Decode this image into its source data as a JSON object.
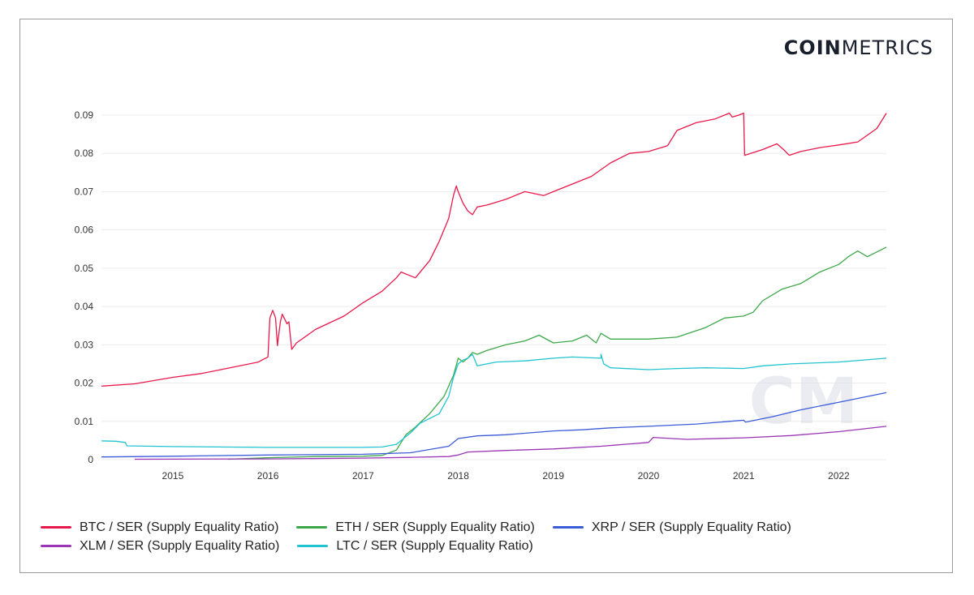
{
  "logo": {
    "bold": "COIN",
    "light": "METRICS"
  },
  "chart_data": {
    "type": "line",
    "title": "",
    "xlabel": "",
    "ylabel": "",
    "xlim": [
      2014.25,
      2022.5
    ],
    "ylim": [
      0,
      0.09
    ],
    "x_ticks": [
      2015,
      2016,
      2017,
      2018,
      2019,
      2020,
      2021,
      2022
    ],
    "x_tick_labels": [
      "2015",
      "2016",
      "2017",
      "2018",
      "2019",
      "2020",
      "2021",
      "2022"
    ],
    "y_ticks": [
      0,
      0.01,
      0.02,
      0.03,
      0.04,
      0.05,
      0.06,
      0.07,
      0.08,
      0.09
    ],
    "y_tick_labels": [
      "0",
      "0.01",
      "0.02",
      "0.03",
      "0.04",
      "0.05",
      "0.06",
      "0.07",
      "0.08",
      "0.09"
    ],
    "grid": true,
    "legend_position": "bottom",
    "watermark": "CM",
    "series": [
      {
        "name": "BTC / SER (Supply Equality Ratio)",
        "color": "#e8194a",
        "x": [
          2014.25,
          2014.6,
          2015.0,
          2015.3,
          2015.6,
          2015.9,
          2015.95,
          2016.0,
          2016.02,
          2016.05,
          2016.08,
          2016.1,
          2016.13,
          2016.15,
          2016.2,
          2016.22,
          2016.25,
          2016.3,
          2016.5,
          2016.8,
          2017.0,
          2017.2,
          2017.35,
          2017.4,
          2017.5,
          2017.55,
          2017.7,
          2017.8,
          2017.9,
          2017.95,
          2017.98,
          2018.0,
          2018.05,
          2018.1,
          2018.15,
          2018.2,
          2018.3,
          2018.5,
          2018.7,
          2018.9,
          2019.0,
          2019.2,
          2019.4,
          2019.6,
          2019.8,
          2020.0,
          2020.2,
          2020.3,
          2020.5,
          2020.7,
          2020.85,
          2020.88,
          2020.95,
          2021.0,
          2021.01,
          2021.2,
          2021.35,
          2021.42,
          2021.48,
          2021.6,
          2021.8,
          2022.0,
          2022.2,
          2022.4,
          2022.5
        ],
        "values": [
          0.0192,
          0.0198,
          0.0215,
          0.0225,
          0.024,
          0.0255,
          0.0262,
          0.0268,
          0.037,
          0.039,
          0.037,
          0.0298,
          0.036,
          0.038,
          0.0355,
          0.036,
          0.0288,
          0.0305,
          0.034,
          0.0375,
          0.041,
          0.044,
          0.0475,
          0.049,
          0.048,
          0.0475,
          0.052,
          0.057,
          0.063,
          0.069,
          0.0715,
          0.07,
          0.067,
          0.065,
          0.064,
          0.066,
          0.0665,
          0.068,
          0.07,
          0.069,
          0.07,
          0.072,
          0.074,
          0.0775,
          0.08,
          0.0805,
          0.082,
          0.086,
          0.088,
          0.089,
          0.0905,
          0.0895,
          0.09,
          0.0905,
          0.0795,
          0.081,
          0.0825,
          0.081,
          0.0795,
          0.0805,
          0.0815,
          0.0822,
          0.083,
          0.0865,
          0.0905
        ]
      },
      {
        "name": "ETH / SER (Supply Equality Ratio)",
        "color": "#3da84a",
        "x": [
          2015.58,
          2016.0,
          2016.5,
          2017.0,
          2017.2,
          2017.35,
          2017.45,
          2017.55,
          2017.7,
          2017.85,
          2017.95,
          2018.0,
          2018.05,
          2018.1,
          2018.15,
          2018.2,
          2018.3,
          2018.5,
          2018.7,
          2018.85,
          2019.0,
          2019.2,
          2019.35,
          2019.45,
          2019.5,
          2019.6,
          2019.8,
          2020.0,
          2020.3,
          2020.6,
          2020.8,
          2021.0,
          2021.1,
          2021.2,
          2021.4,
          2021.6,
          2021.8,
          2022.0,
          2022.1,
          2022.2,
          2022.3,
          2022.5
        ],
        "values": [
          0.0001,
          0.0005,
          0.0008,
          0.0009,
          0.0011,
          0.0025,
          0.0065,
          0.0085,
          0.012,
          0.0165,
          0.022,
          0.0265,
          0.0255,
          0.0265,
          0.028,
          0.0275,
          0.0285,
          0.03,
          0.031,
          0.0325,
          0.0305,
          0.031,
          0.0325,
          0.0305,
          0.033,
          0.0315,
          0.0315,
          0.0315,
          0.032,
          0.0345,
          0.037,
          0.0375,
          0.0385,
          0.0415,
          0.0445,
          0.046,
          0.049,
          0.051,
          0.053,
          0.0545,
          0.053,
          0.0555
        ]
      },
      {
        "name": "XRP / SER (Supply Equality Ratio)",
        "color": "#3b5bd9",
        "x": [
          2014.25,
          2015.0,
          2016.0,
          2017.0,
          2017.5,
          2017.9,
          2018.0,
          2018.2,
          2018.5,
          2019.0,
          2019.3,
          2019.6,
          2020.0,
          2020.5,
          2021.0,
          2021.02,
          2021.3,
          2021.6,
          2022.0,
          2022.5
        ],
        "values": [
          0.0007,
          0.0009,
          0.0012,
          0.0014,
          0.0018,
          0.0035,
          0.0055,
          0.0062,
          0.0065,
          0.0075,
          0.0078,
          0.0083,
          0.0087,
          0.0093,
          0.0103,
          0.0098,
          0.0112,
          0.013,
          0.015,
          0.0175
        ]
      },
      {
        "name": "XLM / SER (Supply Equality Ratio)",
        "color": "#9b35b5",
        "x": [
          2014.6,
          2016.0,
          2017.0,
          2017.5,
          2017.9,
          2018.0,
          2018.1,
          2018.5,
          2019.0,
          2019.5,
          2020.0,
          2020.05,
          2020.4,
          2021.0,
          2021.5,
          2022.0,
          2022.5
        ],
        "values": [
          0.0001,
          0.0002,
          0.0004,
          0.0006,
          0.0008,
          0.0012,
          0.002,
          0.0024,
          0.0028,
          0.0035,
          0.0045,
          0.0058,
          0.0053,
          0.0057,
          0.0063,
          0.0073,
          0.0087
        ]
      },
      {
        "name": "LTC / SER (Supply Equality Ratio)",
        "color": "#22c3d1",
        "x": [
          2014.25,
          2014.4,
          2014.5,
          2014.52,
          2015.0,
          2016.0,
          2017.0,
          2017.2,
          2017.35,
          2017.5,
          2017.6,
          2017.8,
          2017.9,
          2017.95,
          2018.0,
          2018.05,
          2018.1,
          2018.15,
          2018.2,
          2018.4,
          2018.7,
          2019.0,
          2019.2,
          2019.5,
          2019.5,
          2019.53,
          2019.6,
          2020.0,
          2020.3,
          2020.6,
          2021.0,
          2021.2,
          2021.5,
          2022.0,
          2022.5
        ],
        "values": [
          0.0049,
          0.0048,
          0.0045,
          0.0036,
          0.0034,
          0.0032,
          0.0032,
          0.0033,
          0.004,
          0.007,
          0.0095,
          0.012,
          0.0165,
          0.0215,
          0.025,
          0.026,
          0.0265,
          0.0275,
          0.0245,
          0.0255,
          0.0258,
          0.0265,
          0.0268,
          0.0265,
          0.0275,
          0.025,
          0.024,
          0.0235,
          0.0238,
          0.024,
          0.0238,
          0.0245,
          0.025,
          0.0255,
          0.0265
        ]
      }
    ]
  }
}
